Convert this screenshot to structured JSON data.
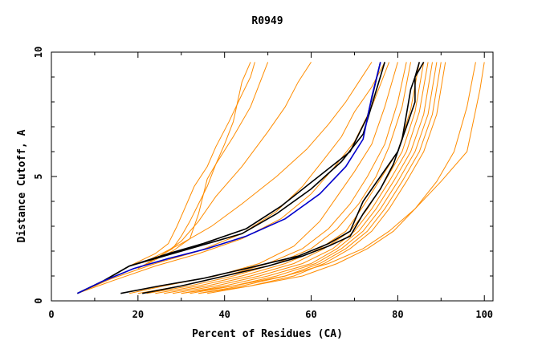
{
  "chart_data": {
    "type": "line",
    "title": "R0949",
    "xlabel": "Percent of Residues (CA)",
    "ylabel": "Distance Cutoff, A",
    "xlim": [
      0,
      102
    ],
    "ylim": [
      0,
      10
    ],
    "x_ticks": [
      0,
      20,
      40,
      60,
      80,
      100
    ],
    "y_ticks": [
      0,
      5,
      10
    ],
    "grid": false,
    "legend": "none",
    "colors": {
      "orange": "#ff8c00",
      "black": "#000000",
      "blue": "#0000cc"
    },
    "series": [
      {
        "color": "#000000",
        "x": [
          6,
          12,
          18,
          27,
          35,
          45,
          53,
          61,
          69,
          73,
          76
        ],
        "y": [
          0.3,
          0.8,
          1.4,
          1.9,
          2.3,
          2.9,
          3.8,
          4.9,
          6.0,
          7.4,
          9.6
        ]
      },
      {
        "color": "#000000",
        "x": [
          6,
          12,
          18,
          26,
          34,
          44,
          52,
          60,
          67,
          72,
          77
        ],
        "y": [
          0.3,
          0.8,
          1.4,
          1.8,
          2.2,
          2.7,
          3.5,
          4.5,
          5.6,
          6.7,
          9.6
        ]
      },
      {
        "color": "#0000cc",
        "x": [
          6,
          12,
          19,
          27,
          36,
          45,
          54,
          62,
          68,
          72,
          74,
          76
        ],
        "y": [
          0.3,
          0.8,
          1.3,
          1.7,
          2.1,
          2.6,
          3.3,
          4.3,
          5.4,
          6.5,
          8.2,
          9.6
        ]
      },
      {
        "color": "#000000",
        "x": [
          16,
          25,
          35,
          45,
          57,
          64,
          69,
          72,
          76,
          80,
          82,
          84,
          84,
          86
        ],
        "y": [
          0.3,
          0.6,
          0.9,
          1.3,
          1.8,
          2.3,
          2.8,
          4.0,
          5.0,
          6.0,
          7.0,
          8.0,
          9.0,
          9.6
        ]
      },
      {
        "color": "#000000",
        "x": [
          21,
          30,
          40,
          50,
          58,
          64,
          69,
          72,
          76,
          79,
          81,
          82,
          83,
          84,
          85
        ],
        "y": [
          0.3,
          0.6,
          1.0,
          1.4,
          1.8,
          2.2,
          2.6,
          3.5,
          4.5,
          5.5,
          6.5,
          7.5,
          8.5,
          9.0,
          9.6
        ]
      },
      {
        "color": "#ff8c00",
        "x": [
          18,
          24,
          27,
          29,
          31,
          33,
          36,
          38,
          41,
          44,
          46,
          47
        ],
        "y": [
          1.4,
          1.9,
          2.3,
          3.0,
          3.8,
          4.6,
          5.4,
          6.2,
          7.2,
          8.3,
          9.0,
          9.6
        ]
      },
      {
        "color": "#ff8c00",
        "x": [
          20,
          28,
          32,
          34,
          35,
          36,
          38,
          40,
          42,
          43,
          44,
          46
        ],
        "y": [
          1.3,
          2.0,
          2.5,
          3.5,
          4.2,
          4.9,
          5.5,
          6.3,
          7.2,
          8.0,
          8.8,
          9.6
        ]
      },
      {
        "color": "#ff8c00",
        "x": [
          22,
          28,
          30,
          32,
          34,
          36,
          38,
          42,
          46,
          50
        ],
        "y": [
          1.5,
          2.1,
          2.6,
          3.2,
          3.9,
          4.6,
          5.5,
          6.6,
          7.8,
          9.6
        ]
      },
      {
        "color": "#ff8c00",
        "x": [
          20,
          26,
          30,
          34,
          38,
          44,
          50,
          54,
          57,
          60
        ],
        "y": [
          1.3,
          1.9,
          2.4,
          3.2,
          4.2,
          5.4,
          6.8,
          7.8,
          8.8,
          9.6
        ]
      },
      {
        "color": "#ff8c00",
        "x": [
          22,
          30,
          37,
          44,
          52,
          59,
          64,
          68,
          71,
          74
        ],
        "y": [
          1.6,
          2.3,
          3.0,
          3.9,
          5.0,
          6.1,
          7.1,
          8.0,
          8.8,
          9.6
        ]
      },
      {
        "color": "#ff8c00",
        "x": [
          6,
          14,
          24,
          34,
          44,
          52,
          58,
          63,
          67,
          70,
          74,
          77
        ],
        "y": [
          0.3,
          0.9,
          1.5,
          2.0,
          2.7,
          3.6,
          4.6,
          5.7,
          6.6,
          7.6,
          8.6,
          9.6
        ]
      },
      {
        "color": "#ff8c00",
        "x": [
          6,
          14,
          24,
          34,
          44,
          53,
          60,
          65,
          70,
          74,
          78
        ],
        "y": [
          0.3,
          0.8,
          1.4,
          1.9,
          2.5,
          3.3,
          4.3,
          5.3,
          6.4,
          7.8,
          9.6
        ]
      },
      {
        "color": "#ff8c00",
        "x": [
          18,
          26,
          38,
          48,
          56,
          62,
          66,
          70,
          74,
          77,
          80
        ],
        "y": [
          0.3,
          0.6,
          1.0,
          1.5,
          2.2,
          3.2,
          4.2,
          5.2,
          6.3,
          7.8,
          9.6
        ]
      },
      {
        "color": "#ff8c00",
        "x": [
          20,
          30,
          40,
          50,
          58,
          64,
          69,
          73,
          77,
          80,
          82
        ],
        "y": [
          0.3,
          0.6,
          1.0,
          1.5,
          2.1,
          2.9,
          3.9,
          5.0,
          6.3,
          8.0,
          9.6
        ]
      },
      {
        "color": "#ff8c00",
        "x": [
          22,
          32,
          42,
          52,
          60,
          66,
          71,
          75,
          78,
          81,
          83
        ],
        "y": [
          0.3,
          0.6,
          1.0,
          1.5,
          2.1,
          2.9,
          3.9,
          5.0,
          6.2,
          7.8,
          9.6
        ]
      },
      {
        "color": "#ff8c00",
        "x": [
          24,
          34,
          44,
          54,
          62,
          68,
          72,
          76,
          80,
          83,
          85
        ],
        "y": [
          0.3,
          0.6,
          1.0,
          1.5,
          2.1,
          2.8,
          3.8,
          4.9,
          6.0,
          7.7,
          9.6
        ]
      },
      {
        "color": "#ff8c00",
        "x": [
          26,
          36,
          46,
          56,
          63,
          69,
          73,
          77,
          81,
          84,
          86
        ],
        "y": [
          0.3,
          0.6,
          1.0,
          1.5,
          2.1,
          2.8,
          3.7,
          4.8,
          6.0,
          7.6,
          9.6
        ]
      },
      {
        "color": "#ff8c00",
        "x": [
          28,
          38,
          48,
          58,
          65,
          70,
          74,
          78,
          82,
          85,
          87
        ],
        "y": [
          0.3,
          0.6,
          1.0,
          1.5,
          2.1,
          2.8,
          3.7,
          4.8,
          6.0,
          7.6,
          9.6
        ]
      },
      {
        "color": "#ff8c00",
        "x": [
          30,
          40,
          50,
          60,
          66,
          71,
          75,
          79,
          83,
          86,
          88
        ],
        "y": [
          0.3,
          0.6,
          1.0,
          1.5,
          2.1,
          2.8,
          3.7,
          4.8,
          6.0,
          7.5,
          9.6
        ]
      },
      {
        "color": "#ff8c00",
        "x": [
          32,
          42,
          52,
          61,
          67,
          72,
          76,
          80,
          84,
          87,
          89
        ],
        "y": [
          0.3,
          0.6,
          1.0,
          1.5,
          2.1,
          2.8,
          3.7,
          4.8,
          6.0,
          7.5,
          9.6
        ]
      },
      {
        "color": "#ff8c00",
        "x": [
          34,
          44,
          54,
          62,
          68,
          73,
          77,
          81,
          85,
          88,
          90
        ],
        "y": [
          0.3,
          0.6,
          1.0,
          1.5,
          2.1,
          2.8,
          3.7,
          4.8,
          6.0,
          7.5,
          9.6
        ]
      },
      {
        "color": "#ff8c00",
        "x": [
          36,
          46,
          56,
          63,
          69,
          74,
          78,
          82,
          86,
          89,
          91
        ],
        "y": [
          0.3,
          0.6,
          1.0,
          1.5,
          2.1,
          2.8,
          3.7,
          4.8,
          6.0,
          7.5,
          9.6
        ]
      },
      {
        "color": "#ff8c00",
        "x": [
          30,
          42,
          54,
          64,
          72,
          78,
          84,
          90,
          96,
          99,
          100
        ],
        "y": [
          0.3,
          0.6,
          1.0,
          1.5,
          2.1,
          2.8,
          3.7,
          4.8,
          6.0,
          8.5,
          9.6
        ]
      },
      {
        "color": "#ff8c00",
        "x": [
          34,
          46,
          58,
          66,
          73,
          79,
          84,
          89,
          93,
          96,
          98
        ],
        "y": [
          0.3,
          0.6,
          1.0,
          1.5,
          2.1,
          2.8,
          3.7,
          4.8,
          6.0,
          7.8,
          9.6
        ]
      }
    ]
  }
}
